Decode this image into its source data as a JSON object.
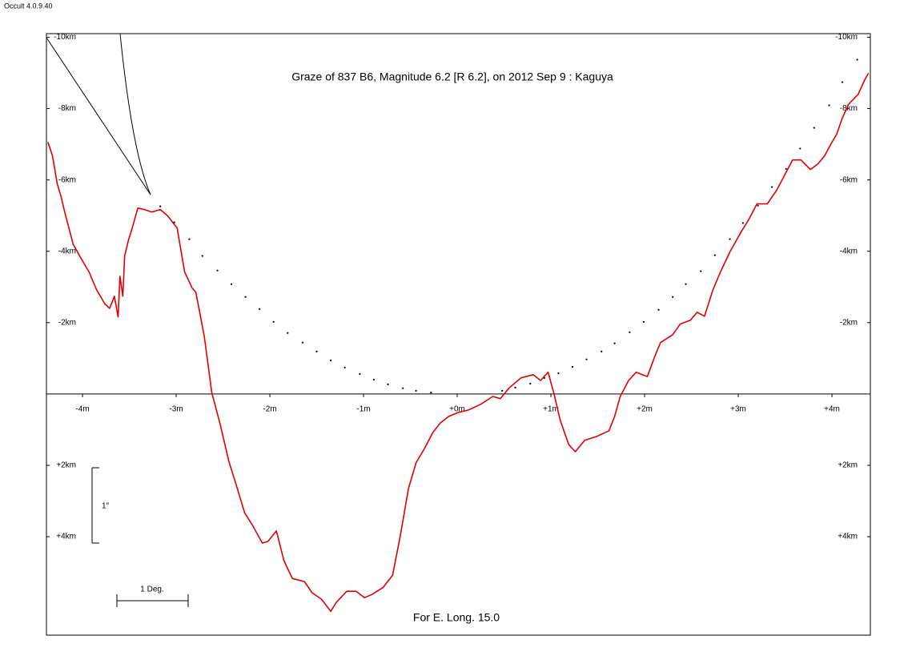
{
  "chart_data": {
    "type": "line",
    "software": "Occult 4.0.9.40",
    "title": "Graze of  837 B6,  Magnitude 6.2 [R 6.2],  on 2012 Sep  9  :  Kaguya",
    "footer": "For E. Long. 15.0",
    "vertical_scale_label": "1\"",
    "horizontal_scale_label": "1 Deg.",
    "xlim": [
      -4.385,
      4.41
    ],
    "ylim": [
      -10.1,
      6.76
    ],
    "y_inverted": true,
    "xticks": [
      {
        "value": -4,
        "label": "-4m"
      },
      {
        "value": -3,
        "label": "-3m"
      },
      {
        "value": -2,
        "label": "-2m"
      },
      {
        "value": -1,
        "label": "-1m"
      },
      {
        "value": 0,
        "label": "+0m"
      },
      {
        "value": 1,
        "label": "+1m"
      },
      {
        "value": 2,
        "label": "+2m"
      },
      {
        "value": 3,
        "label": "+3m"
      },
      {
        "value": 4,
        "label": "+4m"
      }
    ],
    "yticks": [
      {
        "value": -10,
        "label": "-10km"
      },
      {
        "value": -8,
        "label": "-8km"
      },
      {
        "value": -6,
        "label": "-6km"
      },
      {
        "value": -4,
        "label": "-4km"
      },
      {
        "value": -2,
        "label": "-2km"
      },
      {
        "value": 2,
        "label": "+2km"
      },
      {
        "value": 4,
        "label": "+4km"
      }
    ],
    "series": [
      {
        "color": "#e00000",
        "marker": "line",
        "x": [
          -4.37,
          -4.32,
          -4.27,
          -4.23,
          -4.19,
          -4.1,
          -4.02,
          -3.93,
          -3.85,
          -3.76,
          -3.71,
          -3.66,
          -3.62,
          -3.6,
          -3.57,
          -3.55,
          -3.51,
          -3.47,
          -3.41,
          -3.34,
          -3.26,
          -3.17,
          -3.09,
          -2.99,
          -2.91,
          -2.83,
          -2.79,
          -2.7,
          -2.62,
          -2.53,
          -2.44,
          -2.36,
          -2.27,
          -2.19,
          -2.08,
          -2.02,
          -1.93,
          -1.85,
          -1.76,
          -1.63,
          -1.55,
          -1.45,
          -1.35,
          -1.29,
          -1.18,
          -1.08,
          -0.99,
          -0.91,
          -0.79,
          -0.69,
          -0.61,
          -0.52,
          -0.44,
          -0.35,
          -0.26,
          -0.18,
          -0.09,
          0.01,
          0.12,
          0.25,
          0.38,
          0.46,
          0.55,
          0.68,
          0.81,
          0.89,
          0.97,
          1.03,
          1.1,
          1.19,
          1.26,
          1.36,
          1.49,
          1.62,
          1.68,
          1.74,
          1.83,
          1.91,
          2.03,
          2.11,
          2.17,
          2.3,
          2.38,
          2.49,
          2.56,
          2.64,
          2.73,
          2.81,
          2.91,
          3.03,
          3.11,
          3.2,
          3.31,
          3.41,
          3.5,
          3.58,
          3.67,
          3.77,
          3.85,
          3.92,
          3.99,
          4.05,
          4.11,
          4.18,
          4.28,
          4.35,
          4.39
        ],
        "values": [
          -7.06,
          -6.67,
          -5.89,
          -5.55,
          -5.1,
          -4.2,
          -3.82,
          -3.42,
          -2.92,
          -2.52,
          -2.4,
          -2.74,
          -2.16,
          -3.3,
          -2.74,
          -3.87,
          -4.31,
          -4.65,
          -5.21,
          -5.17,
          -5.1,
          -5.17,
          -4.99,
          -4.65,
          -3.42,
          -2.97,
          -2.85,
          -1.62,
          -0.04,
          0.85,
          1.87,
          2.54,
          3.33,
          3.66,
          4.18,
          4.13,
          3.84,
          4.67,
          5.17,
          5.26,
          5.57,
          5.75,
          6.09,
          5.84,
          5.53,
          5.53,
          5.71,
          5.62,
          5.42,
          5.08,
          4.0,
          2.65,
          1.93,
          1.53,
          1.08,
          0.81,
          0.63,
          0.52,
          0.45,
          0.29,
          0.07,
          0.13,
          -0.16,
          -0.45,
          -0.54,
          -0.38,
          -0.61,
          -0.04,
          0.74,
          1.42,
          1.62,
          1.3,
          1.19,
          1.03,
          0.63,
          0.07,
          -0.38,
          -0.61,
          -0.49,
          -1.06,
          -1.44,
          -1.66,
          -1.96,
          -2.07,
          -2.29,
          -2.18,
          -2.92,
          -3.42,
          -3.98,
          -4.54,
          -4.88,
          -5.33,
          -5.33,
          -5.71,
          -6.16,
          -6.56,
          -6.56,
          -6.29,
          -6.45,
          -6.67,
          -7.01,
          -7.28,
          -7.73,
          -8.13,
          -8.4,
          -8.81,
          -8.99
        ]
      },
      {
        "color": "#000000",
        "marker": "dot",
        "x": [
          -3.17,
          -3.02,
          -2.86,
          -2.72,
          -2.56,
          -2.41,
          -2.26,
          -2.11,
          -1.96,
          -1.81,
          -1.65,
          -1.5,
          -1.35,
          -1.2,
          -1.04,
          -0.89,
          -0.74,
          -0.58,
          -0.44,
          -0.28,
          0.48,
          0.62,
          0.78,
          0.93,
          1.08,
          1.23,
          1.38,
          1.54,
          1.68,
          1.84,
          1.99,
          2.15,
          2.3,
          2.44,
          2.6,
          2.75,
          2.91,
          3.05,
          3.21,
          3.36,
          3.51,
          3.66,
          3.81,
          3.97,
          4.11,
          4.27
        ],
        "values": [
          -5.26,
          -4.81,
          -4.34,
          -3.87,
          -3.46,
          -3.08,
          -2.72,
          -2.38,
          -2.02,
          -1.71,
          -1.44,
          -1.19,
          -0.94,
          -0.74,
          -0.56,
          -0.4,
          -0.27,
          -0.16,
          -0.09,
          -0.04,
          -0.09,
          -0.18,
          -0.29,
          -0.45,
          -0.58,
          -0.76,
          -0.97,
          -1.19,
          -1.42,
          -1.73,
          -2.02,
          -2.36,
          -2.72,
          -3.08,
          -3.44,
          -3.89,
          -4.34,
          -4.79,
          -5.28,
          -5.8,
          -6.31,
          -6.88,
          -7.46,
          -8.09,
          -8.74,
          -9.37
        ]
      }
    ]
  }
}
